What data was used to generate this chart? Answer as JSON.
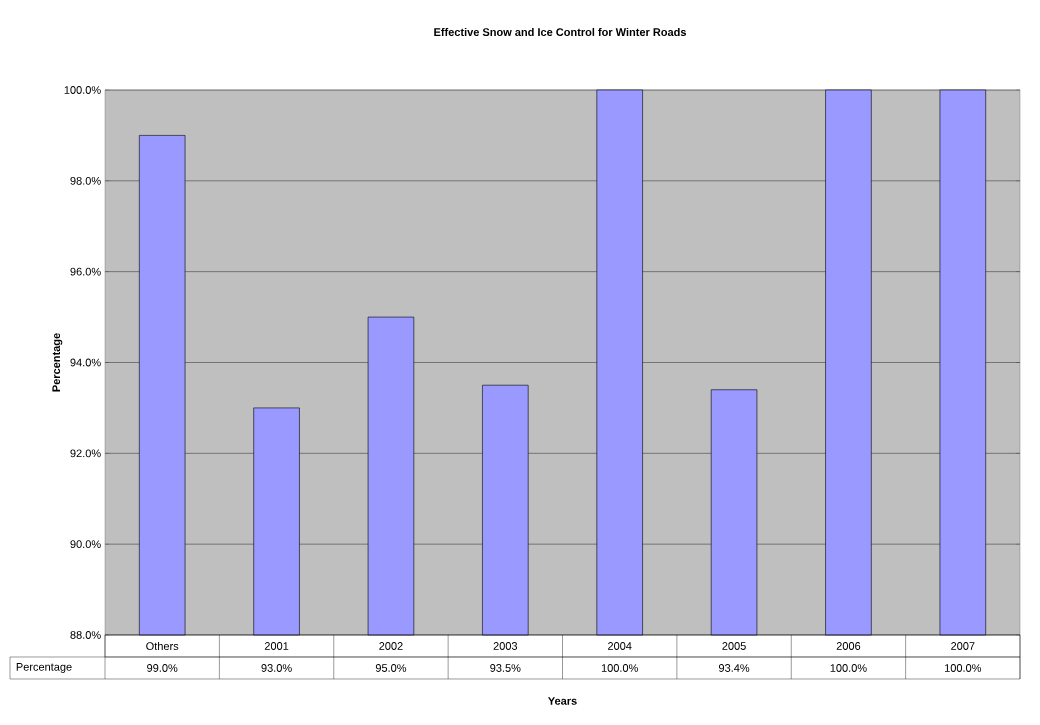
{
  "chart_data": {
    "type": "bar",
    "title": "Effective Snow and Ice Control for Winter Roads",
    "xlabel": "Years",
    "ylabel": "Percentage",
    "categories": [
      "Others",
      "2001",
      "2002",
      "2003",
      "2004",
      "2005",
      "2006",
      "2007"
    ],
    "series": [
      {
        "name": "Percentage",
        "color": "#9999ff",
        "values": [
          99.0,
          93.0,
          95.0,
          93.5,
          100.0,
          93.4,
          100.0,
          100.0
        ],
        "value_labels": [
          "99.0%",
          "93.0%",
          "95.0%",
          "93.5%",
          "100.0%",
          "93.4%",
          "100.0%",
          "100.0%"
        ]
      }
    ],
    "ylim": [
      88,
      100
    ],
    "yticks": [
      {
        "value": 88,
        "label": "88.0%"
      },
      {
        "value": 90,
        "label": "90.0%"
      },
      {
        "value": 92,
        "label": "92.0%"
      },
      {
        "value": 94,
        "label": "94.0%"
      },
      {
        "value": 96,
        "label": "96.0%"
      },
      {
        "value": 98,
        "label": "98.0%"
      },
      {
        "value": 100,
        "label": "100.0%"
      }
    ],
    "grid": "y"
  }
}
